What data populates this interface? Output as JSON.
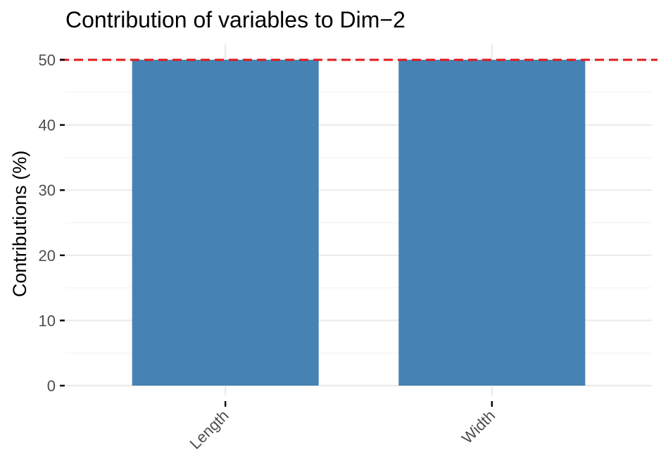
{
  "chart_data": {
    "type": "bar",
    "title": "Contribution of variables to Dim−2",
    "xlabel": "",
    "ylabel": "Contributions (%)",
    "categories": [
      "Length",
      "Width"
    ],
    "values": [
      50,
      50
    ],
    "ylim": [
      0,
      50
    ],
    "yticks": [
      "0",
      "10",
      "20",
      "30",
      "40",
      "50"
    ],
    "reference_line": {
      "value": 50,
      "style": "dashed",
      "color": "#e31a1c"
    },
    "bar_color": "#4682b4",
    "grid": true,
    "legend": "none",
    "x_tick_rotation": "45 degrees"
  }
}
